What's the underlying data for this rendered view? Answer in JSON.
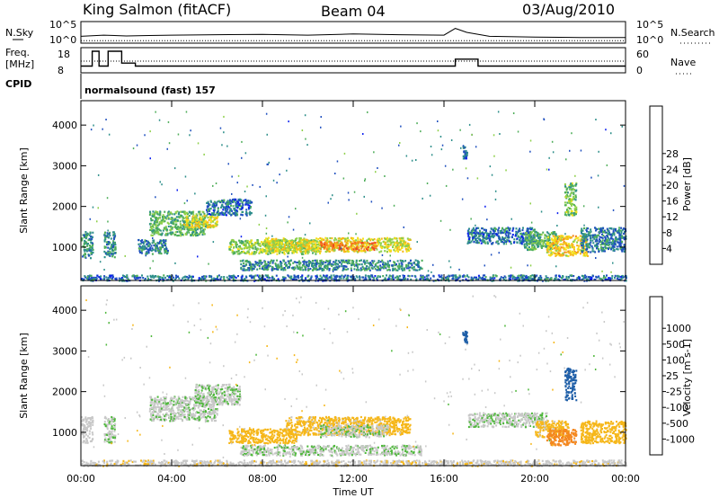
{
  "header": {
    "station": "King Salmon (fitACF)",
    "beam": "Beam 04",
    "date": "03/Aug/2010"
  },
  "cpid_text": "normalsound (fast) 157",
  "chart_data": [
    {
      "type": "line",
      "panel": "noise",
      "left_label": "N.Sky",
      "right_label": "N.Search",
      "left_ticks": [
        "10^5",
        "10^0"
      ],
      "right_ticks": [
        "10^5",
        "10^0"
      ],
      "xlim": [
        0,
        24
      ],
      "series": [
        {
          "name": "N.Sky",
          "x": [
            0,
            1,
            2,
            3,
            4,
            6,
            8,
            10,
            12,
            14,
            16,
            16.5,
            17,
            18,
            20,
            22,
            24
          ],
          "y": [
            1.5,
            1.8,
            1.6,
            1.7,
            1.8,
            1.9,
            2.0,
            1.8,
            2.1,
            1.9,
            1.8,
            3.5,
            2.5,
            1.5,
            1.3,
            1.2,
            1.2
          ]
        },
        {
          "name": "N.Search",
          "x": [
            0,
            24
          ],
          "y": [
            0.4,
            0.4
          ]
        }
      ]
    },
    {
      "type": "line",
      "panel": "frequency",
      "left_label": "Freq.",
      "left_unit": "[MHz]",
      "right_label": "Nave",
      "left_ticks": [
        "18",
        "8"
      ],
      "right_ticks": [
        "60",
        "0"
      ],
      "xlim": [
        0,
        24
      ],
      "series": [
        {
          "name": "Freq.",
          "x": [
            0,
            0.5,
            0.5,
            0.8,
            0.8,
            1.2,
            1.2,
            1.8,
            1.8,
            2.4,
            2.4,
            16.5,
            16.5,
            17.5,
            17.5,
            24
          ],
          "y": [
            10.5,
            10.5,
            18,
            18,
            10.5,
            10.5,
            18,
            18,
            12,
            12,
            10.5,
            10.5,
            14,
            14,
            10.5,
            10.5
          ]
        },
        {
          "name": "Nave",
          "x": [
            0,
            24
          ],
          "y": [
            30,
            30
          ]
        }
      ]
    },
    {
      "type": "heatmap",
      "panel": "power",
      "ylabel": "Slant Range [km]",
      "yticks": [
        1000,
        2000,
        3000,
        4000
      ],
      "ylim": [
        180,
        4600
      ],
      "xlim": [
        0,
        24
      ],
      "colorbar_label": "Power [dB]",
      "colorbar_ticks": [
        "4",
        "8",
        "12",
        "16",
        "20",
        "24",
        "28"
      ],
      "colorbar_colors": [
        "#0a1ef0",
        "#1f4fbf",
        "#2e8f8a",
        "#4fae5a",
        "#8ed04a",
        "#f4e21a",
        "#f6b71a",
        "#f4871e",
        "#ef4a1e",
        "#e80d10"
      ],
      "regions": [
        {
          "t0": 0.0,
          "t1": 0.5,
          "r0": 750,
          "r1": 1400,
          "v": 10
        },
        {
          "t0": 1.0,
          "t1": 1.5,
          "r0": 750,
          "r1": 1400,
          "v": 10
        },
        {
          "t0": 2.5,
          "t1": 3.8,
          "r0": 850,
          "r1": 1200,
          "v": 9
        },
        {
          "t0": 3.0,
          "t1": 5.5,
          "r0": 1300,
          "r1": 1900,
          "v": 13
        },
        {
          "t0": 4.5,
          "t1": 6.0,
          "r0": 1500,
          "r1": 1800,
          "v": 19
        },
        {
          "t0": 5.5,
          "t1": 7.5,
          "r0": 1800,
          "r1": 2200,
          "v": 8
        },
        {
          "t0": 6.5,
          "t1": 10.5,
          "r0": 850,
          "r1": 1200,
          "v": 15
        },
        {
          "t0": 8.0,
          "t1": 14.5,
          "r0": 900,
          "r1": 1250,
          "v": 18
        },
        {
          "t0": 10.5,
          "t1": 13.0,
          "r0": 950,
          "r1": 1150,
          "v": 25
        },
        {
          "t0": 7.0,
          "t1": 15.0,
          "r0": 450,
          "r1": 700,
          "v": 10
        },
        {
          "t0": 17.0,
          "t1": 20.0,
          "r0": 1100,
          "r1": 1500,
          "v": 8
        },
        {
          "t0": 19.5,
          "t1": 21.0,
          "r0": 950,
          "r1": 1400,
          "v": 12
        },
        {
          "t0": 20.5,
          "t1": 22.3,
          "r0": 800,
          "r1": 1300,
          "v": 20
        },
        {
          "t0": 22.0,
          "t1": 24.0,
          "r0": 900,
          "r1": 1500,
          "v": 9
        },
        {
          "t0": 21.3,
          "t1": 21.8,
          "r0": 1800,
          "r1": 2600,
          "v": 14
        },
        {
          "t0": 16.8,
          "t1": 17.0,
          "r0": 3200,
          "r1": 3500,
          "v": 8
        },
        {
          "t0": 0.0,
          "t1": 24.0,
          "r0": 190,
          "r1": 330,
          "v": 8
        }
      ]
    },
    {
      "type": "heatmap",
      "panel": "velocity",
      "ylabel": "Slant Range [km]",
      "xlabel": "Time UT",
      "yticks": [
        1000,
        2000,
        3000,
        4000
      ],
      "ylim": [
        180,
        4600
      ],
      "xlim": [
        0,
        24
      ],
      "xticks": [
        "00:00",
        "04:00",
        "08:00",
        "12:00",
        "16:00",
        "20:00",
        "00:00"
      ],
      "colorbar_label": "Velocity [m s-1]",
      "colorbar_ticks": [
        "-1000",
        "-500",
        "-100",
        "-25",
        "25",
        "100",
        "500",
        "1000"
      ],
      "colorbar_colors": [
        "#e80d10",
        "#ef4a1e",
        "#f4871e",
        "#f6b71a",
        "#c8c8c8",
        "#c8c8c8",
        "#4fb83c",
        "#2e8f6a",
        "#1f5fa8",
        "#1020c8"
      ],
      "regions": [
        {
          "t0": 0.0,
          "t1": 0.5,
          "r0": 750,
          "r1": 1400,
          "v": -40
        },
        {
          "t0": 1.0,
          "t1": 1.5,
          "r0": 750,
          "r1": 1400,
          "v": 0
        },
        {
          "t0": 3.0,
          "t1": 6.0,
          "r0": 1300,
          "r1": 1900,
          "v": 0
        },
        {
          "t0": 5.0,
          "t1": 7.0,
          "r0": 1700,
          "r1": 2200,
          "v": 0
        },
        {
          "t0": 6.5,
          "t1": 9.5,
          "r0": 750,
          "r1": 1100,
          "v": -200
        },
        {
          "t0": 9.0,
          "t1": 14.5,
          "r0": 950,
          "r1": 1400,
          "v": -150
        },
        {
          "t0": 10.5,
          "t1": 13.5,
          "r0": 900,
          "r1": 1200,
          "v": 0
        },
        {
          "t0": 7.0,
          "t1": 15.0,
          "r0": 450,
          "r1": 700,
          "v": 0
        },
        {
          "t0": 17.0,
          "t1": 20.5,
          "r0": 1150,
          "r1": 1500,
          "v": 0
        },
        {
          "t0": 20.0,
          "t1": 21.5,
          "r0": 900,
          "r1": 1300,
          "v": -150
        },
        {
          "t0": 20.5,
          "t1": 21.8,
          "r0": 700,
          "r1": 1100,
          "v": -600
        },
        {
          "t0": 22.0,
          "t1": 24.0,
          "r0": 750,
          "r1": 1300,
          "v": -250
        },
        {
          "t0": 21.3,
          "t1": 21.8,
          "r0": 1800,
          "r1": 2600,
          "v": 600
        },
        {
          "t0": 16.8,
          "t1": 17.0,
          "r0": 3200,
          "r1": 3500,
          "v": 600
        },
        {
          "t0": 0.0,
          "t1": 24.0,
          "r0": 190,
          "r1": 330,
          "v": -60
        }
      ]
    }
  ]
}
